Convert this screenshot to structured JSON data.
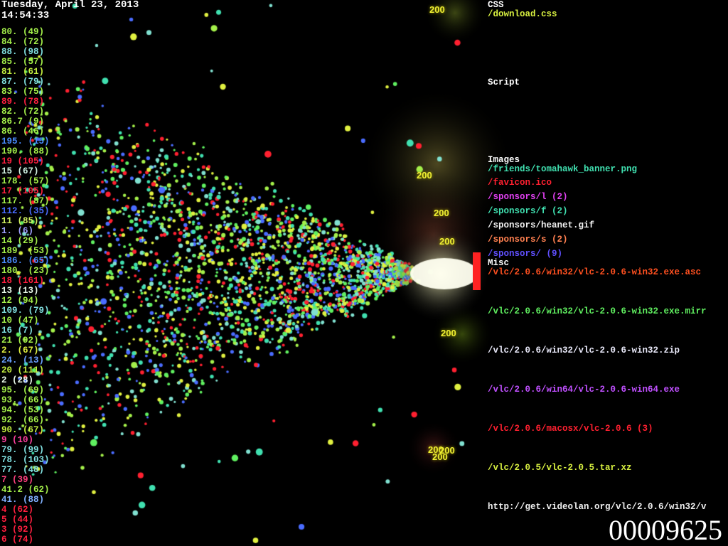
{
  "header": {
    "date": "Tuesday, April 23, 2013",
    "time": "14:54:33"
  },
  "hosts": [
    {
      "label": "80. (49)",
      "color": "#a4f04a"
    },
    {
      "label": "84. (72)",
      "color": "#a4f04a"
    },
    {
      "label": "88. (98)",
      "color": "#80e0e0"
    },
    {
      "label": "85. (57)",
      "color": "#a4f04a"
    },
    {
      "label": "81. (61)",
      "color": "#c4f040"
    },
    {
      "label": "87. (79)",
      "color": "#80e0e0"
    },
    {
      "label": "83. (75)",
      "color": "#a4f04a"
    },
    {
      "label": "89. (78)",
      "color": "#ff2040"
    },
    {
      "label": "82. (72)",
      "color": "#a4f04a"
    },
    {
      "label": "86.7 (9)",
      "color": "#a4f04a"
    },
    {
      "label": "86. (46)",
      "color": "#a4f04a"
    },
    {
      "label": "195. (15)",
      "color": "#4a8cff"
    },
    {
      "label": "190. (88)",
      "color": "#a4f04a"
    },
    {
      "label": "19 (105)",
      "color": "#ff2040"
    },
    {
      "label": "15 (67)",
      "color": "#d0f0e0"
    },
    {
      "label": "178. (57)",
      "color": "#a4f04a"
    },
    {
      "label": "17 (105)",
      "color": "#ff2040"
    },
    {
      "label": "117. (87)",
      "color": "#a4f04a"
    },
    {
      "label": "112. (35)",
      "color": "#4a6cff"
    },
    {
      "label": "11 (85)",
      "color": "#d0f060"
    },
    {
      "label": "1. (6)",
      "color": "#a0a0ff"
    },
    {
      "label": "14 (29)",
      "color": "#a4f04a"
    },
    {
      "label": "189. (53)",
      "color": "#a4f04a"
    },
    {
      "label": "186. (65)",
      "color": "#4a8cff"
    },
    {
      "label": "180. (23)",
      "color": "#a4f04a"
    },
    {
      "label": "18 (161)",
      "color": "#ff2040"
    },
    {
      "label": "13 (13)",
      "color": "#e8f8e8"
    },
    {
      "label": "12 (94)",
      "color": "#a4f04a"
    },
    {
      "label": "109. (79)",
      "color": "#80e0e0"
    },
    {
      "label": "10 (47)",
      "color": "#a4f04a"
    },
    {
      "label": "16 (7)",
      "color": "#80e0e0"
    },
    {
      "label": "21 (92)",
      "color": "#a4f04a"
    },
    {
      "label": "2. (67)",
      "color": "#e0f040"
    },
    {
      "label": "24. (13)",
      "color": "#6aa0ff"
    },
    {
      "label": "20 (111)",
      "color": "#c4f040"
    },
    {
      "label": "2 (28)",
      "color": "#e8f8e8"
    },
    {
      "label": "95. (69)",
      "color": "#a4f04a"
    },
    {
      "label": "93. (66)",
      "color": "#a4f04a"
    },
    {
      "label": "94. (53)",
      "color": "#a4f04a"
    },
    {
      "label": "92. (66)",
      "color": "#a4f04a"
    },
    {
      "label": "90. (67)",
      "color": "#c4f040"
    },
    {
      "label": "9 (10)",
      "color": "#ff40a0"
    },
    {
      "label": "79. (99)",
      "color": "#80e0e0"
    },
    {
      "label": "78. (103)",
      "color": "#80e0e0"
    },
    {
      "label": "77. (48)",
      "color": "#80e0e0"
    },
    {
      "label": "7 (39)",
      "color": "#ff4080"
    },
    {
      "label": "41.2 (62)",
      "color": "#a4f04a"
    },
    {
      "label": "41. (88)",
      "color": "#80b0ff"
    },
    {
      "label": "4 (62)",
      "color": "#ff2040"
    },
    {
      "label": "5 (44)",
      "color": "#ff2040"
    },
    {
      "label": "3 (92)",
      "color": "#ff2040"
    },
    {
      "label": "6 (74)",
      "color": "#ff2040"
    }
  ],
  "groups": {
    "css": "CSS",
    "script": "Script",
    "images": "Images",
    "misc": "Misc"
  },
  "paths": [
    {
      "label": "/download.css",
      "color": "#d8f040"
    },
    {
      "label": "/friends/tomahawk_banner.png",
      "color": "#40e0b0"
    },
    {
      "label": "/favicon.ico",
      "color": "#ff2030"
    },
    {
      "label": "/sponsors/l (2)",
      "color": "#e040f0"
    },
    {
      "label": "/sponsors/f (2)",
      "color": "#40e0b0"
    },
    {
      "label": "/sponsors/heanet.gif",
      "color": "#f0f0f0"
    },
    {
      "label": "/sponsors/s (2)",
      "color": "#ff8050"
    },
    {
      "label": "/sponsors/ (9)",
      "color": "#6050ff"
    },
    {
      "label": "/vlc/2.0.6/win32/vlc-2.0.6-win32.exe.asc",
      "color": "#ff5020"
    },
    {
      "label": "/vlc/2.0.6/win32/vlc-2.0.6-win32.exe.mirr",
      "color": "#60f060"
    },
    {
      "label": "/vlc/2.0.6/win32/vlc-2.0.6-win32.zip",
      "color": "#e8e8f8"
    },
    {
      "label": "/vlc/2.0.6/win64/vlc-2.0.6-win64.exe",
      "color": "#c050ff"
    },
    {
      "label": "/vlc/2.0.6/macosx/vlc-2.0.6 (3)",
      "color": "#ff2030"
    },
    {
      "label": "/vlc/2.0.5/vlc-2.0.5.tar.xz",
      "color": "#d8f040"
    },
    {
      "label": "http://get.videolan.org/vlc/2.0.6/win32/v",
      "color": "#f0f0f0"
    }
  ],
  "response_codes": [
    "200",
    "200",
    "200",
    "200",
    "200",
    "200",
    "200",
    "200"
  ],
  "counter": "00009625",
  "paddle_color": "#ff2222"
}
